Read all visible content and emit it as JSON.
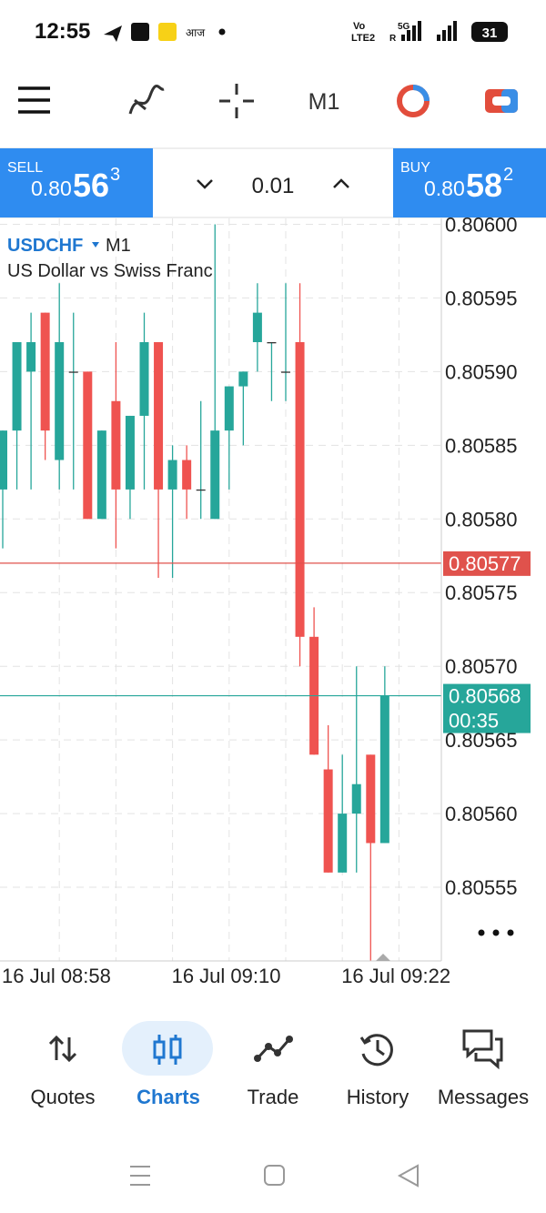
{
  "status_bar": {
    "time": "12:55",
    "network_a": "Vo",
    "network_b": "LTE2",
    "network_c": "5G",
    "network_d": "R",
    "battery": "31"
  },
  "toolbar": {
    "timeframe": "M1"
  },
  "trade_panel": {
    "sell_label": "SELL",
    "sell_prefix": "0.80",
    "sell_big": "56",
    "sell_sup": "3",
    "volume": "0.01",
    "buy_label": "BUY",
    "buy_prefix": "0.80",
    "buy_big": "58",
    "buy_sup": "2"
  },
  "chart_data": {
    "type": "candlestick",
    "symbol": "USDCHF",
    "timeframe": "M1",
    "description": "US Dollar vs Swiss Franc",
    "x": [
      "16 Jul 08:58",
      null,
      null,
      null,
      null,
      null,
      null,
      null,
      null,
      null,
      null,
      null,
      "16 Jul 09:10",
      null,
      null,
      null,
      null,
      null,
      null,
      null,
      null,
      null,
      null,
      null,
      "16 Jul 09:22",
      null,
      null,
      null
    ],
    "open": [
      0.80582,
      0.80586,
      0.8059,
      0.80594,
      0.80584,
      0.8059,
      0.8059,
      0.8058,
      0.80588,
      0.80582,
      0.80587,
      0.80592,
      0.80582,
      0.80584,
      0.80582,
      0.8058,
      0.80586,
      0.80589,
      0.80592,
      0.80592,
      0.8059,
      0.80592,
      0.80572,
      0.80563,
      0.80556,
      0.8056,
      0.80564,
      0.80558
    ],
    "high": [
      0.80586,
      0.80592,
      0.80594,
      0.80594,
      0.80596,
      0.80594,
      0.8059,
      0.80586,
      0.80592,
      0.80587,
      0.80594,
      0.80592,
      0.80585,
      0.80585,
      0.80588,
      0.806,
      0.80589,
      0.8059,
      0.80596,
      0.80592,
      0.80596,
      0.80596,
      0.80574,
      0.80566,
      0.80564,
      0.8057,
      0.80564,
      0.8057
    ],
    "low": [
      0.80578,
      0.80582,
      0.80582,
      0.80584,
      0.80582,
      0.80582,
      0.8058,
      0.8058,
      0.80578,
      0.8058,
      0.80582,
      0.80576,
      0.80576,
      0.8058,
      0.8058,
      0.8058,
      0.80582,
      0.80585,
      0.8059,
      0.80588,
      0.80588,
      0.8057,
      0.80564,
      0.80556,
      0.80556,
      0.80556,
      0.8055,
      0.80558
    ],
    "close": [
      0.80586,
      0.80592,
      0.80592,
      0.80586,
      0.80592,
      0.8059,
      0.8058,
      0.80586,
      0.80582,
      0.80587,
      0.80592,
      0.80582,
      0.80584,
      0.80582,
      0.80582,
      0.80586,
      0.80589,
      0.8059,
      0.80594,
      0.80592,
      0.8059,
      0.80572,
      0.80564,
      0.80556,
      0.8056,
      0.80562,
      0.80558,
      0.80568
    ],
    "up_color": "#26a69a",
    "down_color": "#ef5350",
    "ylim": [
      0.8055,
      0.806004
    ],
    "yticks": [
      {
        "value": 0.806,
        "label": "0.80600"
      },
      0.80595,
      {
        "value": 0.8059,
        "label": "0.80590"
      },
      0.80585,
      {
        "value": 0.8058,
        "label": "0.80580"
      },
      0.80575,
      {
        "value": 0.8057,
        "label": "0.80570"
      },
      0.80565,
      {
        "value": 0.8056,
        "label": "0.80560"
      },
      0.80555
    ],
    "grid": true,
    "price_lines": [
      {
        "value": 0.80577,
        "color": "#e0524c"
      },
      {
        "value": 0.80568,
        "countdown": "00:35",
        "color": "#26a69a"
      }
    ]
  },
  "bottom_nav": [
    "Quotes",
    "Charts",
    "Trade",
    "History",
    "Messages"
  ]
}
